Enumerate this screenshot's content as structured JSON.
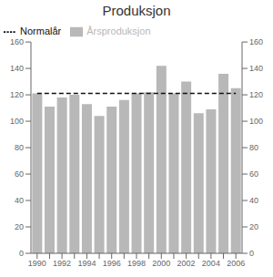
{
  "chart_data": {
    "type": "bar",
    "title": "Produksjon",
    "categories": [
      "1990",
      null,
      "1992",
      null,
      "1994",
      null,
      "1996",
      null,
      "1998",
      null,
      "2000",
      null,
      "2002",
      null,
      "2004",
      null,
      "2006"
    ],
    "series": [
      {
        "name": "Årsproduksjon",
        "type": "bar",
        "color": "#b8b8b8",
        "values": [
          121,
          111,
          118,
          120,
          113,
          104,
          111,
          116,
          121,
          122,
          142,
          121,
          130,
          106,
          109,
          136,
          125
        ]
      },
      {
        "name": "Normalår",
        "type": "line",
        "line_style": "dashed",
        "marker": "none",
        "color": "#111111",
        "values": [
          121,
          121,
          121,
          121,
          121,
          121,
          121,
          121,
          121,
          121,
          121,
          121,
          121,
          121,
          121,
          121,
          121
        ]
      }
    ],
    "ylim": [
      0,
      160
    ],
    "yticks": [
      0,
      20,
      40,
      60,
      80,
      100,
      120,
      140,
      160
    ],
    "y2lim": [
      0,
      160
    ],
    "y2ticks": [
      0,
      20,
      40,
      60,
      80,
      100,
      120,
      140,
      160
    ],
    "grid": false,
    "legend": "upper left"
  }
}
